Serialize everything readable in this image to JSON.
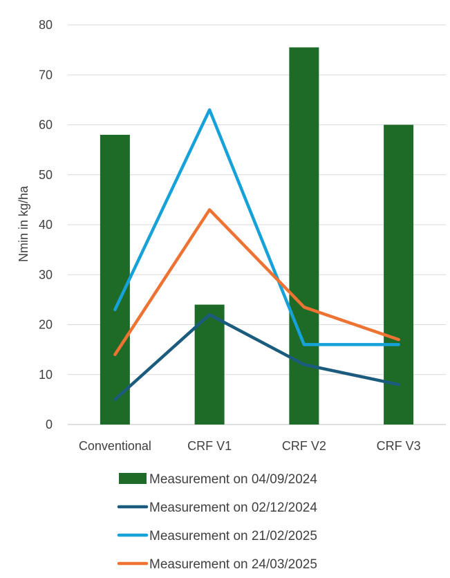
{
  "chart_data": {
    "type": "bar",
    "categories": [
      "Conventional",
      "CRF V1",
      "CRF V2",
      "CRF V3"
    ],
    "ylabel": "Nmin in kg/ha",
    "xlabel": "",
    "title": "",
    "ylim": [
      0,
      80
    ],
    "y_ticks": [
      "0",
      "10",
      "20",
      "30",
      "40",
      "50",
      "60",
      "70",
      "80"
    ],
    "grid": true,
    "legend_position": "bottom",
    "series": [
      {
        "name": "Measurement on 04/09/2024",
        "kind": "bar",
        "color": "#1E6B28",
        "values": [
          58,
          24,
          75.5,
          60
        ]
      },
      {
        "name": "Measurement on 02/12/2024",
        "kind": "line",
        "color": "#1B5C7E",
        "values": [
          5,
          22,
          12,
          8
        ]
      },
      {
        "name": "Measurement on 21/02/2025",
        "kind": "line",
        "color": "#17A1D9",
        "values": [
          23,
          63,
          16,
          16
        ]
      },
      {
        "name": "Measurement on 24/03/2025",
        "kind": "line",
        "color": "#EE7232",
        "values": [
          14,
          43,
          23.5,
          17
        ]
      }
    ]
  }
}
